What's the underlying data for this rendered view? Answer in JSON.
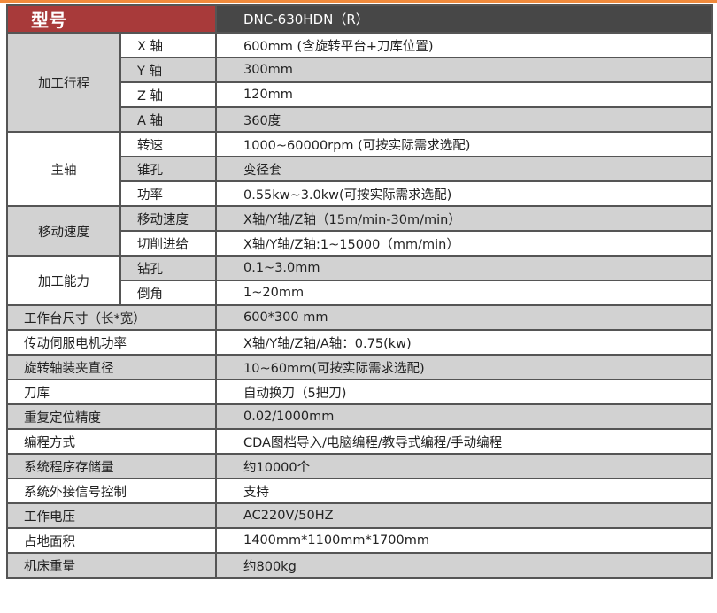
{
  "header": {
    "label": "型号",
    "model": "DNC-630HDN（R）"
  },
  "colors": {
    "header_red": "#a83a3a",
    "header_dark": "#474747",
    "row_gray": "#d2d2d2",
    "accent_line": "#f08a3c"
  },
  "groups": [
    {
      "name": "加工行程",
      "rows": [
        {
          "item": "X 轴",
          "value": "600mm (含旋转平台+刀库位置)"
        },
        {
          "item": "Y 轴",
          "value": "300mm"
        },
        {
          "item": "Z 轴",
          "value": "120mm"
        },
        {
          "item": "A 轴",
          "value": "360度"
        }
      ]
    },
    {
      "name": "主轴",
      "rows": [
        {
          "item": "转速",
          "value": "1000~60000rpm (可按实际需求选配)"
        },
        {
          "item": "锥孔",
          "value": "变径套"
        },
        {
          "item": "功率",
          "value": "0.55kw~3.0kw(可按实际需求选配)"
        }
      ]
    },
    {
      "name": "移动速度",
      "rows": [
        {
          "item": "移动速度",
          "value": "X轴/Y轴/Z轴（15m/min-30m/min）"
        },
        {
          "item": "切削进给",
          "value": "X轴/Y轴/Z轴:1~15000（mm/min）"
        }
      ]
    },
    {
      "name": "加工能力",
      "rows": [
        {
          "item": "钻孔",
          "value": "0.1~3.0mm"
        },
        {
          "item": "倒角",
          "value": "1~20mm"
        }
      ]
    }
  ],
  "singles": [
    {
      "name": "工作台尺寸（长*宽）",
      "value": "600*300 mm"
    },
    {
      "name": "传动伺服电机功率",
      "value": "X轴/Y轴/Z轴/A轴：0.75(kw)"
    },
    {
      "name": "旋转轴装夹直径",
      "value": "10~60mm(可按实际需求选配)"
    },
    {
      "name": "刀库",
      "value": "自动换刀（5把刀)"
    },
    {
      "name": "重复定位精度",
      "value": "0.02/1000mm"
    },
    {
      "name": "编程方式",
      "value": "CDA图档导入/电脑编程/教导式编程/手动编程"
    },
    {
      "name": "系统程序存储量",
      "value": "约10000个"
    },
    {
      "name": "系统外接信号控制",
      "value": "支持"
    },
    {
      "name": "工作电压",
      "value": "AC220V/50HZ"
    },
    {
      "name": "占地面积",
      "value": "1400mm*1100mm*1700mm"
    },
    {
      "name": "机床重量",
      "value": "约800kg"
    }
  ]
}
